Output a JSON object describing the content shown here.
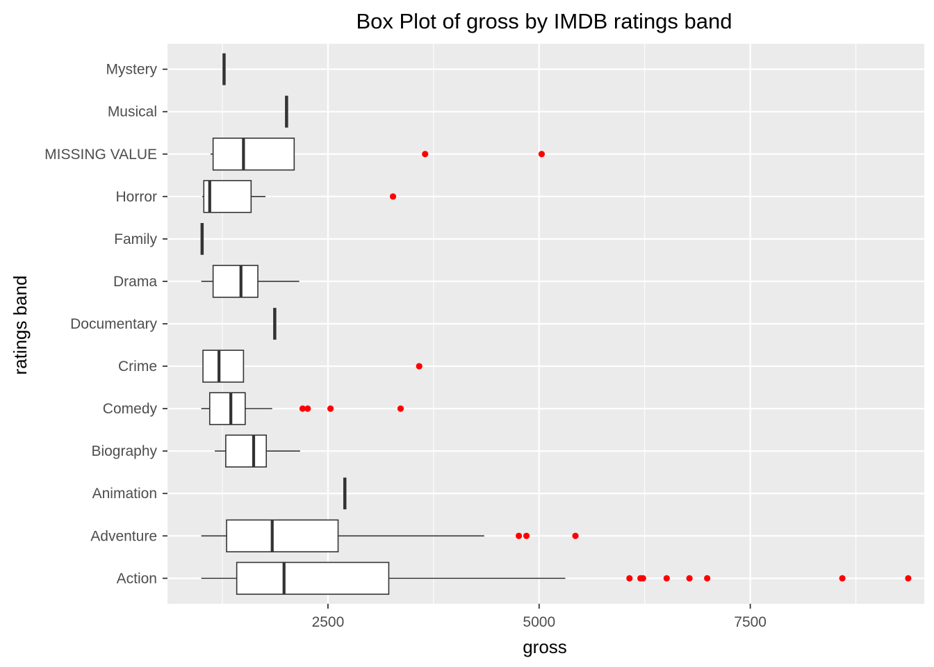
{
  "chart_data": {
    "type": "boxplot",
    "orientation": "horizontal",
    "title": "Box Plot of gross by IMDB ratings band",
    "xlabel": "gross",
    "ylabel": "ratings band",
    "xlim": [
      600,
      9560
    ],
    "x_ticks": [
      2500,
      5000,
      7500
    ],
    "x_tick_labels": [
      "2500",
      "5000",
      "7500"
    ],
    "grid": true,
    "legend": "none",
    "colors": {
      "panel_background": "#ebebeb",
      "grid": "#ffffff",
      "box_line": "#333333",
      "box_fill": "#ffffff",
      "outlier": "#ff0000",
      "tick_text": "#4d4d4d"
    },
    "categories": [
      "Action",
      "Adventure",
      "Animation",
      "Biography",
      "Comedy",
      "Crime",
      "Documentary",
      "Drama",
      "Family",
      "Horror",
      "MISSING VALUE",
      "Musical",
      "Mystery"
    ],
    "boxes": [
      {
        "category": "Action",
        "whisker_low": 1000,
        "q1": 1420,
        "median": 1980,
        "q3": 3220,
        "whisker_high": 5310,
        "outliers": [
          6070,
          6200,
          6230,
          6510,
          6780,
          6990,
          8590,
          9370
        ]
      },
      {
        "category": "Adventure",
        "whisker_low": 1000,
        "q1": 1300,
        "median": 1840,
        "q3": 2620,
        "whisker_high": 4350,
        "outliers": [
          4760,
          4850,
          5430
        ]
      },
      {
        "category": "Animation",
        "whisker_low": 2700,
        "q1": 2700,
        "median": 2700,
        "q3": 2700,
        "whisker_high": 2700,
        "outliers": []
      },
      {
        "category": "Biography",
        "whisker_low": 1160,
        "q1": 1290,
        "median": 1620,
        "q3": 1770,
        "whisker_high": 2170,
        "outliers": []
      },
      {
        "category": "Comedy",
        "whisker_low": 1000,
        "q1": 1100,
        "median": 1350,
        "q3": 1520,
        "whisker_high": 1840,
        "outliers": [
          2200,
          2260,
          2530,
          3360
        ]
      },
      {
        "category": "Crime",
        "whisker_low": 1020,
        "q1": 1020,
        "median": 1210,
        "q3": 1500,
        "whisker_high": 1500,
        "outliers": [
          3580
        ]
      },
      {
        "category": "Documentary",
        "whisker_low": 1870,
        "q1": 1870,
        "median": 1870,
        "q3": 1870,
        "whisker_high": 1870,
        "outliers": []
      },
      {
        "category": "Drama",
        "whisker_low": 1000,
        "q1": 1140,
        "median": 1470,
        "q3": 1670,
        "whisker_high": 2160,
        "outliers": []
      },
      {
        "category": "Family",
        "whisker_low": 1010,
        "q1": 1010,
        "median": 1010,
        "q3": 1010,
        "whisker_high": 1010,
        "outliers": []
      },
      {
        "category": "Horror",
        "whisker_low": 1010,
        "q1": 1030,
        "median": 1100,
        "q3": 1590,
        "whisker_high": 1760,
        "outliers": [
          3270
        ]
      },
      {
        "category": "MISSING VALUE",
        "whisker_low": 1110,
        "q1": 1140,
        "median": 1500,
        "q3": 2100,
        "whisker_high": 2100,
        "outliers": [
          3650,
          5030
        ]
      },
      {
        "category": "Musical",
        "whisker_low": 2010,
        "q1": 2010,
        "median": 2010,
        "q3": 2010,
        "whisker_high": 2010,
        "outliers": []
      },
      {
        "category": "Mystery",
        "whisker_low": 1270,
        "q1": 1270,
        "median": 1270,
        "q3": 1270,
        "whisker_high": 1270,
        "outliers": []
      }
    ]
  }
}
